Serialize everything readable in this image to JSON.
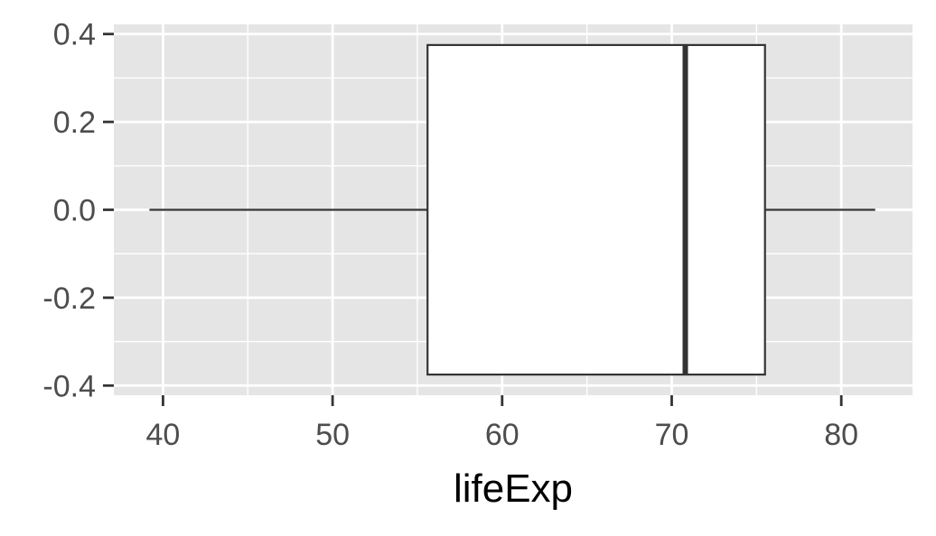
{
  "chart_data": {
    "type": "boxplot",
    "title": "",
    "xlabel": "lifeExp",
    "ylabel": "",
    "xlim": [
      37.1,
      84.2
    ],
    "ylim": [
      -0.4,
      0.4
    ],
    "x_ticks": [
      40,
      50,
      60,
      70,
      80
    ],
    "x_tick_labels": [
      "40",
      "50",
      "60",
      "70",
      "80"
    ],
    "x_minor_ticks": [
      45,
      55,
      65,
      75
    ],
    "y_ticks": [
      0.4,
      0.2,
      0.0,
      -0.2,
      -0.4
    ],
    "y_tick_labels": [
      "0.4",
      "0.2",
      "0.0",
      "-0.2",
      "-0.4"
    ],
    "y_minor_ticks": [
      0.3,
      0.1,
      -0.1,
      -0.3
    ],
    "box": {
      "whisker_low": 39.2,
      "q1": 55.6,
      "median": 70.8,
      "q3": 75.5,
      "whisker_high": 82.0,
      "y_center": 0.0,
      "half_width": 0.375
    },
    "grid": true,
    "colors": {
      "panel": "#e5e5e5",
      "grid": "#ffffff",
      "box_fill": "#ffffff",
      "box_stroke": "#333333",
      "tick_text": "#4d4d4d",
      "axis_title": "#000000"
    }
  }
}
